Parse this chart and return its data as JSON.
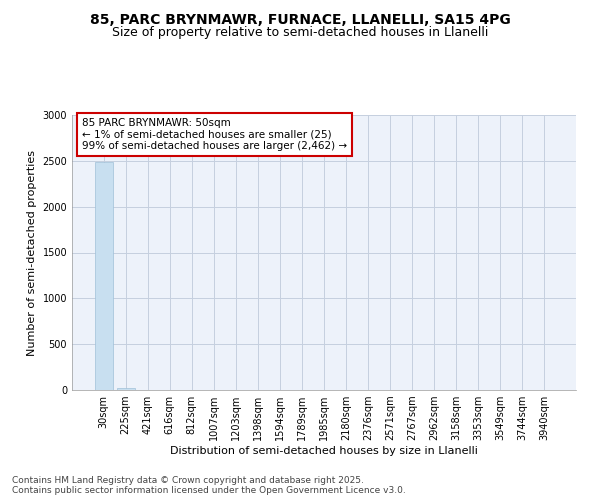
{
  "title_line1": "85, PARC BRYNMAWR, FURNACE, LLANELLI, SA15 4PG",
  "title_line2": "Size of property relative to semi-detached houses in Llanelli",
  "xlabel": "Distribution of semi-detached houses by size in Llanelli",
  "ylabel": "Number of semi-detached properties",
  "categories": [
    "30sqm",
    "225sqm",
    "421sqm",
    "616sqm",
    "812sqm",
    "1007sqm",
    "1203sqm",
    "1398sqm",
    "1594sqm",
    "1789sqm",
    "1985sqm",
    "2180sqm",
    "2376sqm",
    "2571sqm",
    "2767sqm",
    "2962sqm",
    "3158sqm",
    "3353sqm",
    "3549sqm",
    "3744sqm",
    "3940sqm"
  ],
  "values": [
    2487,
    25,
    0,
    0,
    0,
    0,
    0,
    0,
    0,
    0,
    0,
    0,
    0,
    0,
    0,
    0,
    0,
    0,
    0,
    0,
    0
  ],
  "bar_color": "#c8dff0",
  "bar_edge_color": "#a0c0d8",
  "ylim": [
    0,
    3000
  ],
  "yticks": [
    0,
    500,
    1000,
    1500,
    2000,
    2500,
    3000
  ],
  "annotation_title": "85 PARC BRYNMAWR: 50sqm",
  "annotation_line1": "← 1% of semi-detached houses are smaller (25)",
  "annotation_line2": "99% of semi-detached houses are larger (2,462) →",
  "annotation_box_facecolor": "#ffffff",
  "annotation_border_color": "#cc0000",
  "footer_line1": "Contains HM Land Registry data © Crown copyright and database right 2025.",
  "footer_line2": "Contains public sector information licensed under the Open Government Licence v3.0.",
  "bg_color": "#edf2fa",
  "grid_color": "#c5cfdf",
  "title_fontsize": 10,
  "subtitle_fontsize": 9,
  "tick_label_fontsize": 7,
  "axis_label_fontsize": 8,
  "annotation_fontsize": 7.5,
  "footer_fontsize": 6.5
}
